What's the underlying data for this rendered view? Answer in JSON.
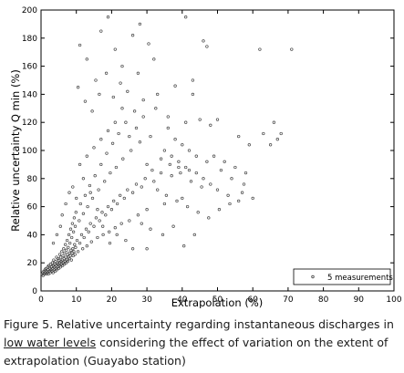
{
  "figure": {
    "caption_prefix": "Figure 5. Relative uncertainty regarding instantaneous discharges in ",
    "caption_link": "low water levels",
    "caption_suffix": " considering the effect of variation on the extent of extrapolation (Guayabo station)"
  },
  "chart_data": {
    "type": "scatter",
    "title": "",
    "xlabel": "Extrapolation (%)",
    "ylabel": "Relative uncertainty Q min (%)",
    "xlim": [
      0,
      100
    ],
    "ylim": [
      0,
      200
    ],
    "xticks": [
      "0",
      "10",
      "20",
      "30",
      "40",
      "50",
      "60",
      "70",
      "80",
      "90",
      "100"
    ],
    "yticks": [
      "0",
      "20",
      "40",
      "60",
      "80",
      "100",
      "120",
      "140",
      "160",
      "180",
      "200"
    ],
    "grid": false,
    "legend": {
      "position": "bottom-right",
      "entries": [
        "5 measurements"
      ]
    },
    "marker_color": "#444444",
    "series": [
      {
        "name": "5 measurements",
        "points": [
          [
            0.3,
            12
          ],
          [
            0.5,
            13
          ],
          [
            0.6,
            11
          ],
          [
            0.8,
            14
          ],
          [
            1.0,
            12
          ],
          [
            1.1,
            15
          ],
          [
            1.2,
            13
          ],
          [
            1.4,
            16
          ],
          [
            1.5,
            12
          ],
          [
            1.6,
            14
          ],
          [
            1.8,
            13
          ],
          [
            1.9,
            17
          ],
          [
            2.0,
            15
          ],
          [
            2.1,
            12
          ],
          [
            2.2,
            18
          ],
          [
            2.4,
            14
          ],
          [
            2.5,
            16
          ],
          [
            2.6,
            13
          ],
          [
            2.7,
            19
          ],
          [
            2.8,
            15
          ],
          [
            3.0,
            17
          ],
          [
            3.1,
            14
          ],
          [
            3.2,
            20
          ],
          [
            3.3,
            16
          ],
          [
            3.4,
            13
          ],
          [
            3.5,
            18
          ],
          [
            3.6,
            22
          ],
          [
            3.7,
            15
          ],
          [
            3.8,
            17
          ],
          [
            3.9,
            19
          ],
          [
            4.0,
            14
          ],
          [
            4.1,
            21
          ],
          [
            4.2,
            16
          ],
          [
            4.3,
            18
          ],
          [
            4.4,
            24
          ],
          [
            4.5,
            15
          ],
          [
            4.6,
            20
          ],
          [
            4.7,
            17
          ],
          [
            4.8,
            23
          ],
          [
            4.9,
            19
          ],
          [
            5.0,
            16
          ],
          [
            5.1,
            22
          ],
          [
            5.2,
            18
          ],
          [
            5.3,
            26
          ],
          [
            5.4,
            20
          ],
          [
            5.5,
            17
          ],
          [
            5.6,
            24
          ],
          [
            5.7,
            21
          ],
          [
            5.8,
            19
          ],
          [
            5.9,
            28
          ],
          [
            6.0,
            22
          ],
          [
            6.1,
            18
          ],
          [
            6.2,
            25
          ],
          [
            6.3,
            20
          ],
          [
            6.4,
            30
          ],
          [
            6.5,
            23
          ],
          [
            6.6,
            19
          ],
          [
            6.7,
            27
          ],
          [
            6.8,
            21
          ],
          [
            6.9,
            33
          ],
          [
            7.0,
            24
          ],
          [
            7.1,
            20
          ],
          [
            7.2,
            29
          ],
          [
            7.3,
            22
          ],
          [
            7.4,
            36
          ],
          [
            7.5,
            26
          ],
          [
            7.6,
            21
          ],
          [
            7.7,
            31
          ],
          [
            7.8,
            24
          ],
          [
            7.9,
            40
          ],
          [
            8.0,
            27
          ],
          [
            8.1,
            23
          ],
          [
            8.2,
            34
          ],
          [
            8.3,
            25
          ],
          [
            8.4,
            44
          ],
          [
            8.5,
            29
          ],
          [
            8.6,
            22
          ],
          [
            8.7,
            38
          ],
          [
            8.8,
            27
          ],
          [
            8.9,
            48
          ],
          [
            9.0,
            30
          ],
          [
            9.1,
            25
          ],
          [
            9.2,
            42
          ],
          [
            9.3,
            28
          ],
          [
            9.4,
            52
          ],
          [
            9.5,
            33
          ],
          [
            9.6,
            26
          ],
          [
            9.7,
            46
          ],
          [
            9.8,
            31
          ],
          [
            9.9,
            56
          ],
          [
            10.2,
            36
          ],
          [
            10.5,
            28
          ],
          [
            10.8,
            50
          ],
          [
            11.0,
            34
          ],
          [
            11.2,
            62
          ],
          [
            11.5,
            40
          ],
          [
            11.8,
            30
          ],
          [
            12.0,
            55
          ],
          [
            12.2,
            38
          ],
          [
            12.5,
            68
          ],
          [
            12.8,
            44
          ],
          [
            13.0,
            32
          ],
          [
            13.2,
            60
          ],
          [
            13.5,
            42
          ],
          [
            13.8,
            75
          ],
          [
            14.0,
            48
          ],
          [
            14.3,
            35
          ],
          [
            14.6,
            66
          ],
          [
            15.0,
            46
          ],
          [
            15.3,
            82
          ],
          [
            15.6,
            52
          ],
          [
            16.0,
            38
          ],
          [
            16.3,
            72
          ],
          [
            16.6,
            50
          ],
          [
            17.0,
            90
          ],
          [
            17.3,
            56
          ],
          [
            17.6,
            40
          ],
          [
            18.0,
            78
          ],
          [
            18.3,
            54
          ],
          [
            18.6,
            98
          ],
          [
            19.0,
            60
          ],
          [
            19.3,
            42
          ],
          [
            19.6,
            84
          ],
          [
            20.0,
            58
          ],
          [
            20.3,
            105
          ],
          [
            20.6,
            64
          ],
          [
            21.0,
            45
          ],
          [
            21.3,
            88
          ],
          [
            21.6,
            62
          ],
          [
            22.0,
            112
          ],
          [
            22.4,
            68
          ],
          [
            22.8,
            48
          ],
          [
            23.2,
            94
          ],
          [
            23.6,
            66
          ],
          [
            24.0,
            120
          ],
          [
            24.5,
            72
          ],
          [
            25.0,
            50
          ],
          [
            25.5,
            100
          ],
          [
            26.0,
            70
          ],
          [
            26.5,
            128
          ],
          [
            27.0,
            76
          ],
          [
            27.5,
            54
          ],
          [
            28.0,
            106
          ],
          [
            28.5,
            74
          ],
          [
            29.0,
            136
          ],
          [
            29.5,
            80
          ],
          [
            30.0,
            58
          ],
          [
            31.0,
            110
          ],
          [
            32.0,
            78
          ],
          [
            33.0,
            140
          ],
          [
            34.0,
            84
          ],
          [
            35.0,
            62
          ],
          [
            36.0,
            116
          ],
          [
            37.0,
            82
          ],
          [
            38.0,
            146
          ],
          [
            39.0,
            88
          ],
          [
            40.0,
            66
          ],
          [
            41.0,
            120
          ],
          [
            42.0,
            86
          ],
          [
            43.0,
            150
          ],
          [
            11.0,
            175
          ],
          [
            13.0,
            165
          ],
          [
            15.5,
            150
          ],
          [
            17.0,
            185
          ],
          [
            19.0,
            195
          ],
          [
            21.0,
            172
          ],
          [
            23.0,
            160
          ],
          [
            26.0,
            182
          ],
          [
            28.0,
            190
          ],
          [
            30.5,
            176
          ],
          [
            10.5,
            145
          ],
          [
            12.5,
            135
          ],
          [
            14.5,
            128
          ],
          [
            16.5,
            140
          ],
          [
            18.5,
            155
          ],
          [
            20.5,
            138
          ],
          [
            22.5,
            148
          ],
          [
            24.5,
            142
          ],
          [
            27.5,
            155
          ],
          [
            32.0,
            165
          ],
          [
            41.0,
            195
          ],
          [
            46.0,
            178
          ],
          [
            47.0,
            174
          ],
          [
            43.0,
            140
          ],
          [
            45.0,
            122
          ],
          [
            48.0,
            118
          ],
          [
            50.0,
            122
          ],
          [
            56.0,
            110
          ],
          [
            59.0,
            104
          ],
          [
            62.0,
            172
          ],
          [
            63.0,
            112
          ],
          [
            65.0,
            104
          ],
          [
            66.0,
            120
          ],
          [
            67.0,
            108
          ],
          [
            68.0,
            112
          ],
          [
            71.0,
            172
          ],
          [
            49.0,
            96
          ],
          [
            52.0,
            92
          ],
          [
            55.0,
            88
          ],
          [
            58.0,
            84
          ],
          [
            35.0,
            100
          ],
          [
            37.0,
            96
          ],
          [
            39.0,
            92
          ],
          [
            41.0,
            88
          ],
          [
            44.0,
            84
          ],
          [
            46.0,
            80
          ],
          [
            48.0,
            76
          ],
          [
            50.0,
            72
          ],
          [
            53.0,
            68
          ],
          [
            56.0,
            64
          ],
          [
            33.0,
            72
          ],
          [
            35.5,
            68
          ],
          [
            38.5,
            64
          ],
          [
            41.5,
            60
          ],
          [
            44.5,
            56
          ],
          [
            47.5,
            52
          ],
          [
            50.5,
            58
          ],
          [
            53.5,
            62
          ],
          [
            57.0,
            70
          ],
          [
            60.0,
            66
          ],
          [
            30.0,
            90
          ],
          [
            31.5,
            86
          ],
          [
            34.0,
            94
          ],
          [
            36.5,
            90
          ],
          [
            39.5,
            84
          ],
          [
            42.5,
            78
          ],
          [
            45.5,
            74
          ],
          [
            28.5,
            48
          ],
          [
            31.0,
            44
          ],
          [
            34.5,
            40
          ],
          [
            37.5,
            46
          ],
          [
            40.5,
            32
          ],
          [
            43.5,
            40
          ],
          [
            30.0,
            30
          ],
          [
            26.0,
            30
          ],
          [
            24.0,
            36
          ],
          [
            21.5,
            40
          ],
          [
            19.5,
            34
          ],
          [
            17.5,
            46
          ],
          [
            16.0,
            58
          ],
          [
            14.0,
            70
          ],
          [
            12.0,
            80
          ],
          [
            10.0,
            66
          ],
          [
            9.0,
            74
          ],
          [
            8.0,
            70
          ],
          [
            7.0,
            62
          ],
          [
            6.0,
            54
          ],
          [
            5.5,
            46
          ],
          [
            4.5,
            40
          ],
          [
            3.5,
            34
          ],
          [
            25.0,
            110
          ],
          [
            27.0,
            116
          ],
          [
            29.0,
            124
          ],
          [
            23.0,
            130
          ],
          [
            21.0,
            120
          ],
          [
            19.0,
            114
          ],
          [
            17.0,
            108
          ],
          [
            15.0,
            102
          ],
          [
            13.0,
            96
          ],
          [
            11.0,
            90
          ],
          [
            32.5,
            130
          ],
          [
            36.0,
            124
          ],
          [
            38.0,
            108
          ],
          [
            40.0,
            104
          ],
          [
            42.0,
            100
          ],
          [
            44.0,
            96
          ],
          [
            47.0,
            92
          ],
          [
            51.0,
            86
          ],
          [
            54.0,
            80
          ],
          [
            57.5,
            76
          ]
        ]
      }
    ]
  }
}
